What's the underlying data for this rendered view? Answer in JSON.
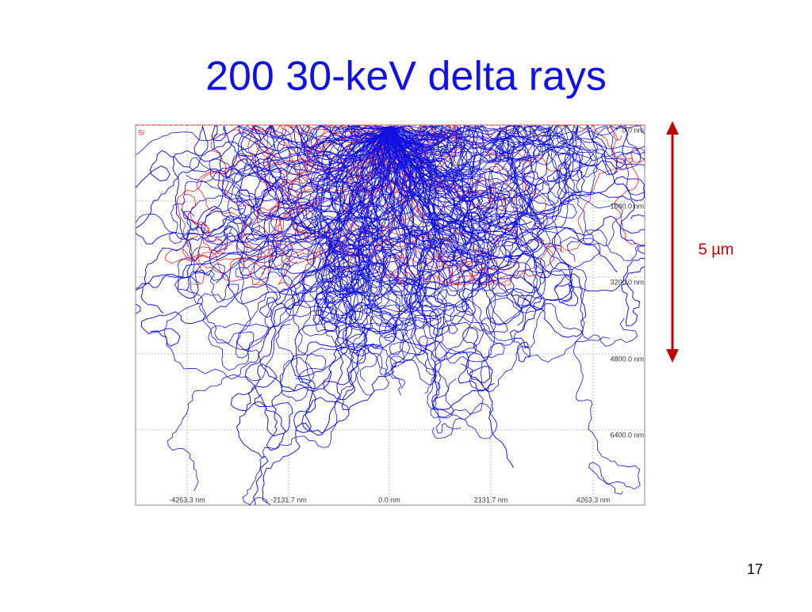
{
  "title": "200 30-keV delta rays",
  "plot": {
    "material": "Si",
    "y_labels": [
      "0.0 nm",
      "1600.0 nm",
      "3200.0 nm",
      "4800.0 nm",
      "6400.0 nm"
    ],
    "x_labels": [
      "-4263.3 nm",
      "-2131.7 nm",
      "0.0 nm",
      "2131.7 nm",
      "4263.3 nm"
    ]
  },
  "scale_bar": "5 µm",
  "page_number": "17"
}
